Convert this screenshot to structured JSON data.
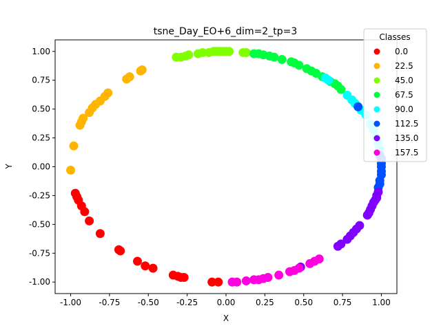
{
  "chart_data": {
    "type": "scatter",
    "title": "tsne_Day_EO+6_dim=2_tp=3",
    "xlabel": "X",
    "ylabel": "Y",
    "xlim": [
      -1.1,
      1.1
    ],
    "ylim": [
      -1.1,
      1.1
    ],
    "xticks": [
      "-1.00",
      "-0.75",
      "-0.50",
      "-0.25",
      "0.00",
      "0.25",
      "0.50",
      "0.75",
      "1.00"
    ],
    "xtick_values": [
      -1.0,
      -0.75,
      -0.5,
      -0.25,
      0.0,
      0.25,
      0.5,
      0.75,
      1.0
    ],
    "yticks": [
      "-1.00",
      "-0.75",
      "-0.50",
      "-0.25",
      "0.00",
      "0.25",
      "0.50",
      "0.75",
      "1.00"
    ],
    "ytick_values": [
      -1.0,
      -0.75,
      -0.5,
      -0.25,
      0.0,
      0.25,
      0.5,
      0.75,
      1.0
    ],
    "grid": false,
    "legend": {
      "title": "Classes",
      "placement": "top-right"
    },
    "series": [
      {
        "name": "0.0",
        "color": "#ff0000",
        "points": [
          [
            -0.91,
            -0.39
          ],
          [
            -0.93,
            -0.34
          ],
          [
            -0.95,
            -0.29
          ],
          [
            -0.96,
            -0.26
          ],
          [
            -0.97,
            -0.23
          ],
          [
            -0.88,
            -0.47
          ],
          [
            -0.81,
            -0.58
          ],
          [
            -0.69,
            -0.72
          ],
          [
            -0.68,
            -0.73
          ],
          [
            -0.57,
            -0.82
          ],
          [
            -0.52,
            -0.86
          ],
          [
            -0.47,
            -0.88
          ],
          [
            -0.34,
            -0.94
          ],
          [
            -0.31,
            -0.95
          ],
          [
            -0.29,
            -0.96
          ],
          [
            -0.27,
            -0.96
          ],
          [
            -0.09,
            -1.0
          ],
          [
            -0.05,
            -1.0
          ]
        ]
      },
      {
        "name": "22.5",
        "color": "#ffb400",
        "points": [
          [
            -1.0,
            -0.03
          ],
          [
            -0.98,
            0.18
          ],
          [
            -0.94,
            0.36
          ],
          [
            -0.93,
            0.39
          ],
          [
            -0.92,
            0.42
          ],
          [
            -0.88,
            0.47
          ],
          [
            -0.86,
            0.51
          ],
          [
            -0.84,
            0.54
          ],
          [
            -0.81,
            0.57
          ],
          [
            -0.78,
            0.61
          ],
          [
            -0.76,
            0.64
          ],
          [
            -0.64,
            0.76
          ],
          [
            -0.62,
            0.78
          ],
          [
            -0.55,
            0.83
          ],
          [
            -0.54,
            0.84
          ]
        ]
      },
      {
        "name": "45.0",
        "color": "#7fff00",
        "points": [
          [
            -0.32,
            0.95
          ],
          [
            -0.29,
            0.95
          ],
          [
            -0.26,
            0.96
          ],
          [
            -0.24,
            0.97
          ],
          [
            -0.18,
            0.98
          ],
          [
            -0.15,
            0.99
          ],
          [
            -0.11,
            0.99
          ],
          [
            -0.08,
            1.0
          ],
          [
            -0.06,
            1.0
          ],
          [
            -0.04,
            1.0
          ],
          [
            -0.02,
            1.0
          ],
          [
            0.0,
            1.0
          ],
          [
            0.02,
            1.0
          ],
          [
            0.11,
            0.99
          ],
          [
            0.13,
            0.99
          ]
        ]
      },
      {
        "name": "67.5",
        "color": "#00ff40",
        "points": [
          [
            0.18,
            0.98
          ],
          [
            0.21,
            0.98
          ],
          [
            0.24,
            0.97
          ],
          [
            0.28,
            0.96
          ],
          [
            0.31,
            0.95
          ],
          [
            0.36,
            0.93
          ],
          [
            0.42,
            0.91
          ],
          [
            0.44,
            0.9
          ],
          [
            0.47,
            0.88
          ],
          [
            0.52,
            0.85
          ],
          [
            0.55,
            0.83
          ],
          [
            0.58,
            0.81
          ],
          [
            0.62,
            0.78
          ],
          [
            0.67,
            0.74
          ],
          [
            0.7,
            0.72
          ],
          [
            0.72,
            0.7
          ],
          [
            0.74,
            0.67
          ]
        ]
      },
      {
        "name": "90.0",
        "color": "#00ffff",
        "points": [
          [
            0.64,
            0.77
          ],
          [
            0.66,
            0.75
          ],
          [
            0.78,
            0.62
          ],
          [
            0.81,
            0.58
          ],
          [
            0.83,
            0.55
          ],
          [
            0.87,
            0.49
          ],
          [
            0.9,
            0.45
          ],
          [
            0.93,
            0.37
          ],
          [
            0.95,
            0.32
          ],
          [
            0.97,
            0.25
          ],
          [
            0.98,
            0.2
          ],
          [
            0.99,
            0.15
          ],
          [
            0.99,
            0.12
          ]
        ]
      },
      {
        "name": "112.5",
        "color": "#0050ff",
        "points": [
          [
            0.85,
            0.52
          ],
          [
            0.99,
            0.1
          ],
          [
            1.0,
            0.07
          ],
          [
            1.0,
            0.03
          ],
          [
            1.0,
            0.0
          ],
          [
            1.0,
            -0.04
          ],
          [
            1.0,
            -0.07
          ],
          [
            0.99,
            -0.12
          ],
          [
            0.99,
            -0.15
          ],
          [
            0.98,
            -0.18
          ]
        ]
      },
      {
        "name": "135.0",
        "color": "#7f00ff",
        "points": [
          [
            0.98,
            -0.22
          ],
          [
            0.97,
            -0.25
          ],
          [
            0.97,
            -0.27
          ],
          [
            0.96,
            -0.29
          ],
          [
            0.95,
            -0.31
          ],
          [
            0.94,
            -0.34
          ],
          [
            0.93,
            -0.37
          ],
          [
            0.92,
            -0.4
          ],
          [
            0.91,
            -0.42
          ],
          [
            0.86,
            -0.51
          ],
          [
            0.84,
            -0.54
          ],
          [
            0.82,
            -0.57
          ],
          [
            0.8,
            -0.6
          ],
          [
            0.78,
            -0.63
          ],
          [
            0.74,
            -0.67
          ],
          [
            0.72,
            -0.69
          ],
          [
            0.48,
            -0.87
          ]
        ]
      },
      {
        "name": "157.5",
        "color": "#ff00df",
        "points": [
          [
            0.6,
            -0.8
          ],
          [
            0.57,
            -0.82
          ],
          [
            0.54,
            -0.84
          ],
          [
            0.47,
            -0.88
          ],
          [
            0.44,
            -0.9
          ],
          [
            0.41,
            -0.91
          ],
          [
            0.34,
            -0.94
          ],
          [
            0.27,
            -0.96
          ],
          [
            0.24,
            -0.97
          ],
          [
            0.21,
            -0.98
          ],
          [
            0.18,
            -0.98
          ],
          [
            0.13,
            -0.99
          ],
          [
            0.07,
            -1.0
          ],
          [
            0.04,
            -1.0
          ]
        ]
      }
    ]
  }
}
